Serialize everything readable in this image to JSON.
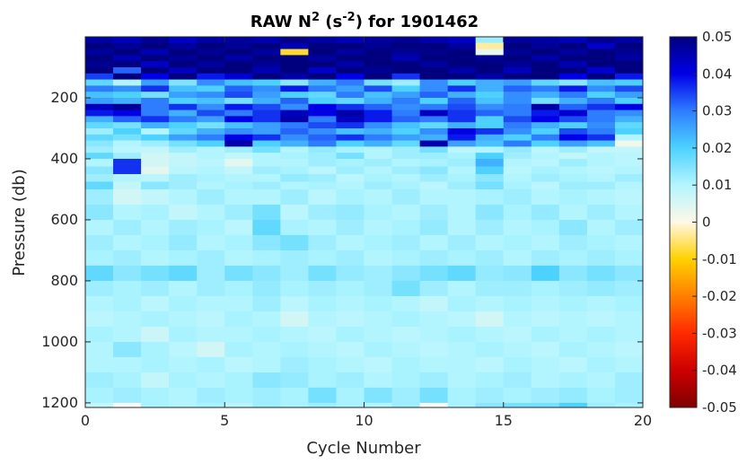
{
  "chart_data": {
    "type": "heatmap",
    "title": {
      "pre": "RAW N",
      "sup1": "2",
      "mid": " (s",
      "sup2": "-2",
      "post": ") for 1901462"
    },
    "xlabel": "Cycle Number",
    "ylabel": "Pressure (db)",
    "xlim": [
      0,
      20
    ],
    "ylim": [
      1215,
      0
    ],
    "xticks": [
      0,
      5,
      10,
      15,
      20
    ],
    "yticks": [
      200,
      400,
      600,
      800,
      1000,
      1200
    ],
    "colorbar": {
      "range": [
        -0.05,
        0.05
      ],
      "ticks": [
        "0.05",
        "0.04",
        "0.03",
        "0.02",
        "0.01",
        "0",
        "-0.01",
        "-0.02",
        "-0.03",
        "-0.04",
        "-0.05"
      ],
      "colormap": [
        "#7f0000",
        "#cc0000",
        "#ff2a00",
        "#ff7f00",
        "#ffd100",
        "#fff8e6",
        "#b3f5ff",
        "#4dd2ff",
        "#2e7dff",
        "#0000e6",
        "#00007f"
      ]
    },
    "x_cells": [
      0.5,
      1.5,
      2.5,
      3.5,
      4.5,
      5.5,
      6.5,
      7.5,
      8.5,
      9.5,
      10.5,
      11.5,
      12.5,
      13.5,
      14.5,
      15.5,
      16.5,
      17.5,
      18.5,
      19.5
    ],
    "y_cells": [
      0,
      20,
      40,
      60,
      80,
      100,
      120,
      140,
      160,
      180,
      200,
      220,
      240,
      260,
      280,
      300,
      320,
      340,
      360,
      380,
      400,
      425,
      450,
      475,
      500,
      550,
      600,
      650,
      700,
      750,
      800,
      850,
      900,
      950,
      1000,
      1050,
      1100,
      1150,
      1200
    ],
    "values": [
      [
        0.046,
        0.044,
        0.048,
        0.043,
        0.046,
        0.047,
        0.045,
        0.049,
        0.046,
        0.044,
        0.047,
        0.048,
        0.045,
        0.043,
        0.012,
        0.047,
        0.046,
        0.044,
        0.048,
        0.046
      ],
      [
        0.05,
        0.048,
        0.05,
        0.047,
        0.05,
        0.048,
        0.05,
        0.045,
        0.05,
        0.05,
        0.048,
        0.05,
        0.05,
        0.047,
        -0.003,
        0.05,
        0.048,
        0.05,
        0.043,
        0.05
      ],
      [
        0.047,
        0.05,
        0.045,
        0.05,
        0.048,
        0.05,
        0.047,
        -0.008,
        0.05,
        0.047,
        0.05,
        0.048,
        0.049,
        0.05,
        0.003,
        0.048,
        0.05,
        0.047,
        0.05,
        0.048
      ],
      [
        0.05,
        0.045,
        0.05,
        0.048,
        0.05,
        0.046,
        0.05,
        0.05,
        0.047,
        0.05,
        0.05,
        0.045,
        0.05,
        0.05,
        0.048,
        0.05,
        0.046,
        0.05,
        0.05,
        0.047
      ],
      [
        0.048,
        0.05,
        0.043,
        0.05,
        0.047,
        0.05,
        0.048,
        0.05,
        0.05,
        0.046,
        0.05,
        0.05,
        0.047,
        0.05,
        0.05,
        0.048,
        0.05,
        0.045,
        0.05,
        0.05
      ],
      [
        0.05,
        0.032,
        0.05,
        0.044,
        0.05,
        0.05,
        0.045,
        0.05,
        0.043,
        0.05,
        0.048,
        0.05,
        0.05,
        0.046,
        0.05,
        0.044,
        0.05,
        0.05,
        0.042,
        0.05
      ],
      [
        0.035,
        0.05,
        0.04,
        0.05,
        0.038,
        0.042,
        0.05,
        0.046,
        0.05,
        0.04,
        0.05,
        0.036,
        0.05,
        0.05,
        0.046,
        0.05,
        0.05,
        0.04,
        0.05,
        0.038
      ],
      [
        0.018,
        0.01,
        0.026,
        0.015,
        0.028,
        0.022,
        0.02,
        0.014,
        0.024,
        0.03,
        0.016,
        0.012,
        0.028,
        0.02,
        0.024,
        0.026,
        0.018,
        0.014,
        0.022,
        0.02
      ],
      [
        0.03,
        0.028,
        0.036,
        0.022,
        0.02,
        0.032,
        0.028,
        0.038,
        0.03,
        0.026,
        0.034,
        0.02,
        0.028,
        0.036,
        0.024,
        0.032,
        0.03,
        0.038,
        0.028,
        0.034
      ],
      [
        0.022,
        0.02,
        0.016,
        0.026,
        0.028,
        0.034,
        0.026,
        0.02,
        0.018,
        0.03,
        0.022,
        0.026,
        0.032,
        0.024,
        0.02,
        0.028,
        0.024,
        0.03,
        0.02,
        0.026
      ],
      [
        0.026,
        0.024,
        0.03,
        0.02,
        0.022,
        0.016,
        0.024,
        0.032,
        0.02,
        0.018,
        0.024,
        0.03,
        0.02,
        0.032,
        0.022,
        0.028,
        0.016,
        0.024,
        0.03,
        0.02
      ],
      [
        0.044,
        0.048,
        0.03,
        0.036,
        0.028,
        0.038,
        0.034,
        0.028,
        0.04,
        0.036,
        0.032,
        0.028,
        0.03,
        0.034,
        0.028,
        0.03,
        0.046,
        0.032,
        0.036,
        0.04
      ],
      [
        0.038,
        0.04,
        0.03,
        0.024,
        0.034,
        0.03,
        0.036,
        0.044,
        0.04,
        0.046,
        0.038,
        0.03,
        0.044,
        0.036,
        0.032,
        0.03,
        0.038,
        0.042,
        0.03,
        0.028
      ],
      [
        0.024,
        0.032,
        0.036,
        0.03,
        0.026,
        0.04,
        0.036,
        0.046,
        0.03,
        0.044,
        0.038,
        0.032,
        0.03,
        0.036,
        0.02,
        0.034,
        0.04,
        0.034,
        0.03,
        0.024
      ],
      [
        0.018,
        0.016,
        0.024,
        0.02,
        0.016,
        0.022,
        0.026,
        0.03,
        0.034,
        0.036,
        0.028,
        0.022,
        0.018,
        0.024,
        0.02,
        0.03,
        0.024,
        0.02,
        0.028,
        0.018
      ],
      [
        0.012,
        0.02,
        0.01,
        0.018,
        0.024,
        0.028,
        0.026,
        0.032,
        0.028,
        0.022,
        0.024,
        0.02,
        0.028,
        0.04,
        0.036,
        0.028,
        0.02,
        0.034,
        0.03,
        0.02
      ],
      [
        0.018,
        0.016,
        0.02,
        0.026,
        0.03,
        0.04,
        0.036,
        0.028,
        0.032,
        0.036,
        0.03,
        0.026,
        0.024,
        0.038,
        0.024,
        0.02,
        0.03,
        0.04,
        0.036,
        0.01
      ],
      [
        0.014,
        0.01,
        0.012,
        0.016,
        0.02,
        0.046,
        0.02,
        0.024,
        0.03,
        0.02,
        0.024,
        0.018,
        0.046,
        0.026,
        0.022,
        0.03,
        0.02,
        0.026,
        0.022,
        0.002
      ],
      [
        0.012,
        0.009,
        0.008,
        0.012,
        0.01,
        0.012,
        0.016,
        0.01,
        0.013,
        0.011,
        0.01,
        0.012,
        0.016,
        0.009,
        0.01,
        0.013,
        0.009,
        0.012,
        0.008,
        0.008
      ],
      [
        0.018,
        0.012,
        0.006,
        0.008,
        0.01,
        0.008,
        0.01,
        0.011,
        0.012,
        0.016,
        0.01,
        0.012,
        0.012,
        0.011,
        0.02,
        0.012,
        0.01,
        0.008,
        0.01,
        0.009
      ],
      [
        0.01,
        0.036,
        0.006,
        0.008,
        0.009,
        0.004,
        0.01,
        0.01,
        0.012,
        0.011,
        0.012,
        0.01,
        0.011,
        0.012,
        0.024,
        0.01,
        0.009,
        0.012,
        0.01,
        0.009
      ],
      [
        0.014,
        0.036,
        0.004,
        0.009,
        0.01,
        0.008,
        0.012,
        0.011,
        0.009,
        0.012,
        0.01,
        0.012,
        0.014,
        0.01,
        0.02,
        0.009,
        0.011,
        0.01,
        0.009,
        0.01
      ],
      [
        0.012,
        0.01,
        0.009,
        0.012,
        0.011,
        0.01,
        0.01,
        0.013,
        0.012,
        0.009,
        0.011,
        0.01,
        0.012,
        0.011,
        0.014,
        0.01,
        0.012,
        0.011,
        0.01,
        0.012
      ],
      [
        0.018,
        0.008,
        0.014,
        0.012,
        0.01,
        0.011,
        0.012,
        0.01,
        0.011,
        0.01,
        0.012,
        0.011,
        0.009,
        0.012,
        0.016,
        0.011,
        0.009,
        0.012,
        0.012,
        0.01
      ],
      [
        0.012,
        0.006,
        0.008,
        0.01,
        0.012,
        0.01,
        0.01,
        0.012,
        0.009,
        0.011,
        0.01,
        0.012,
        0.01,
        0.01,
        0.011,
        0.012,
        0.01,
        0.011,
        0.01,
        0.009
      ],
      [
        0.014,
        0.01,
        0.011,
        0.008,
        0.01,
        0.012,
        0.016,
        0.009,
        0.012,
        0.013,
        0.011,
        0.01,
        0.012,
        0.01,
        0.014,
        0.011,
        0.013,
        0.01,
        0.012,
        0.01
      ],
      [
        0.01,
        0.012,
        0.01,
        0.012,
        0.011,
        0.009,
        0.018,
        0.011,
        0.01,
        0.012,
        0.01,
        0.011,
        0.013,
        0.01,
        0.012,
        0.01,
        0.011,
        0.014,
        0.01,
        0.012
      ],
      [
        0.012,
        0.01,
        0.011,
        0.013,
        0.01,
        0.011,
        0.014,
        0.016,
        0.012,
        0.01,
        0.011,
        0.012,
        0.01,
        0.012,
        0.01,
        0.011,
        0.01,
        0.012,
        0.011,
        0.01
      ],
      [
        0.011,
        0.012,
        0.01,
        0.011,
        0.012,
        0.01,
        0.011,
        0.012,
        0.011,
        0.012,
        0.01,
        0.011,
        0.012,
        0.011,
        0.012,
        0.01,
        0.012,
        0.011,
        0.012,
        0.011
      ],
      [
        0.018,
        0.014,
        0.016,
        0.018,
        0.012,
        0.016,
        0.014,
        0.012,
        0.016,
        0.013,
        0.012,
        0.014,
        0.016,
        0.018,
        0.013,
        0.014,
        0.02,
        0.014,
        0.016,
        0.014
      ],
      [
        0.012,
        0.011,
        0.012,
        0.01,
        0.012,
        0.011,
        0.013,
        0.011,
        0.012,
        0.011,
        0.012,
        0.016,
        0.012,
        0.01,
        0.012,
        0.012,
        0.011,
        0.012,
        0.013,
        0.012
      ],
      [
        0.01,
        0.011,
        0.009,
        0.011,
        0.01,
        0.01,
        0.012,
        0.009,
        0.011,
        0.01,
        0.011,
        0.01,
        0.008,
        0.011,
        0.01,
        0.011,
        0.01,
        0.011,
        0.01,
        0.011
      ],
      [
        0.009,
        0.01,
        0.011,
        0.01,
        0.009,
        0.011,
        0.01,
        0.006,
        0.01,
        0.009,
        0.01,
        0.011,
        0.01,
        0.009,
        0.006,
        0.01,
        0.009,
        0.01,
        0.009,
        0.01
      ],
      [
        0.011,
        0.01,
        0.007,
        0.011,
        0.01,
        0.01,
        0.011,
        0.01,
        0.009,
        0.011,
        0.01,
        0.009,
        0.01,
        0.011,
        0.01,
        0.009,
        0.011,
        0.01,
        0.011,
        0.01
      ],
      [
        0.01,
        0.014,
        0.011,
        0.009,
        0.006,
        0.011,
        0.01,
        0.011,
        0.01,
        0.009,
        0.011,
        0.01,
        0.009,
        0.01,
        0.011,
        0.01,
        0.009,
        0.011,
        0.01,
        0.009
      ],
      [
        0.01,
        0.01,
        0.011,
        0.01,
        0.011,
        0.009,
        0.01,
        0.012,
        0.011,
        0.01,
        0.009,
        0.011,
        0.01,
        0.01,
        0.009,
        0.011,
        0.01,
        0.009,
        0.011,
        0.01
      ],
      [
        0.012,
        0.011,
        0.008,
        0.011,
        0.01,
        0.011,
        0.014,
        0.013,
        0.011,
        0.012,
        0.01,
        0.011,
        0.012,
        0.01,
        0.011,
        0.012,
        0.01,
        0.011,
        0.01,
        0.012
      ],
      [
        0.011,
        0.012,
        0.011,
        0.01,
        0.012,
        0.011,
        0.012,
        0.011,
        0.016,
        0.011,
        0.015,
        0.012,
        0.016,
        0.011,
        0.012,
        0.011,
        0.012,
        0.013,
        0.011,
        0.012
      ],
      [
        0.008,
        0.0,
        0.011,
        0.01,
        0.011,
        0.009,
        0.012,
        0.011,
        0.012,
        0.011,
        0.01,
        0.012,
        0.0,
        0.011,
        0.014,
        0.016,
        0.016,
        0.02,
        0.012,
        0.011
      ]
    ]
  }
}
